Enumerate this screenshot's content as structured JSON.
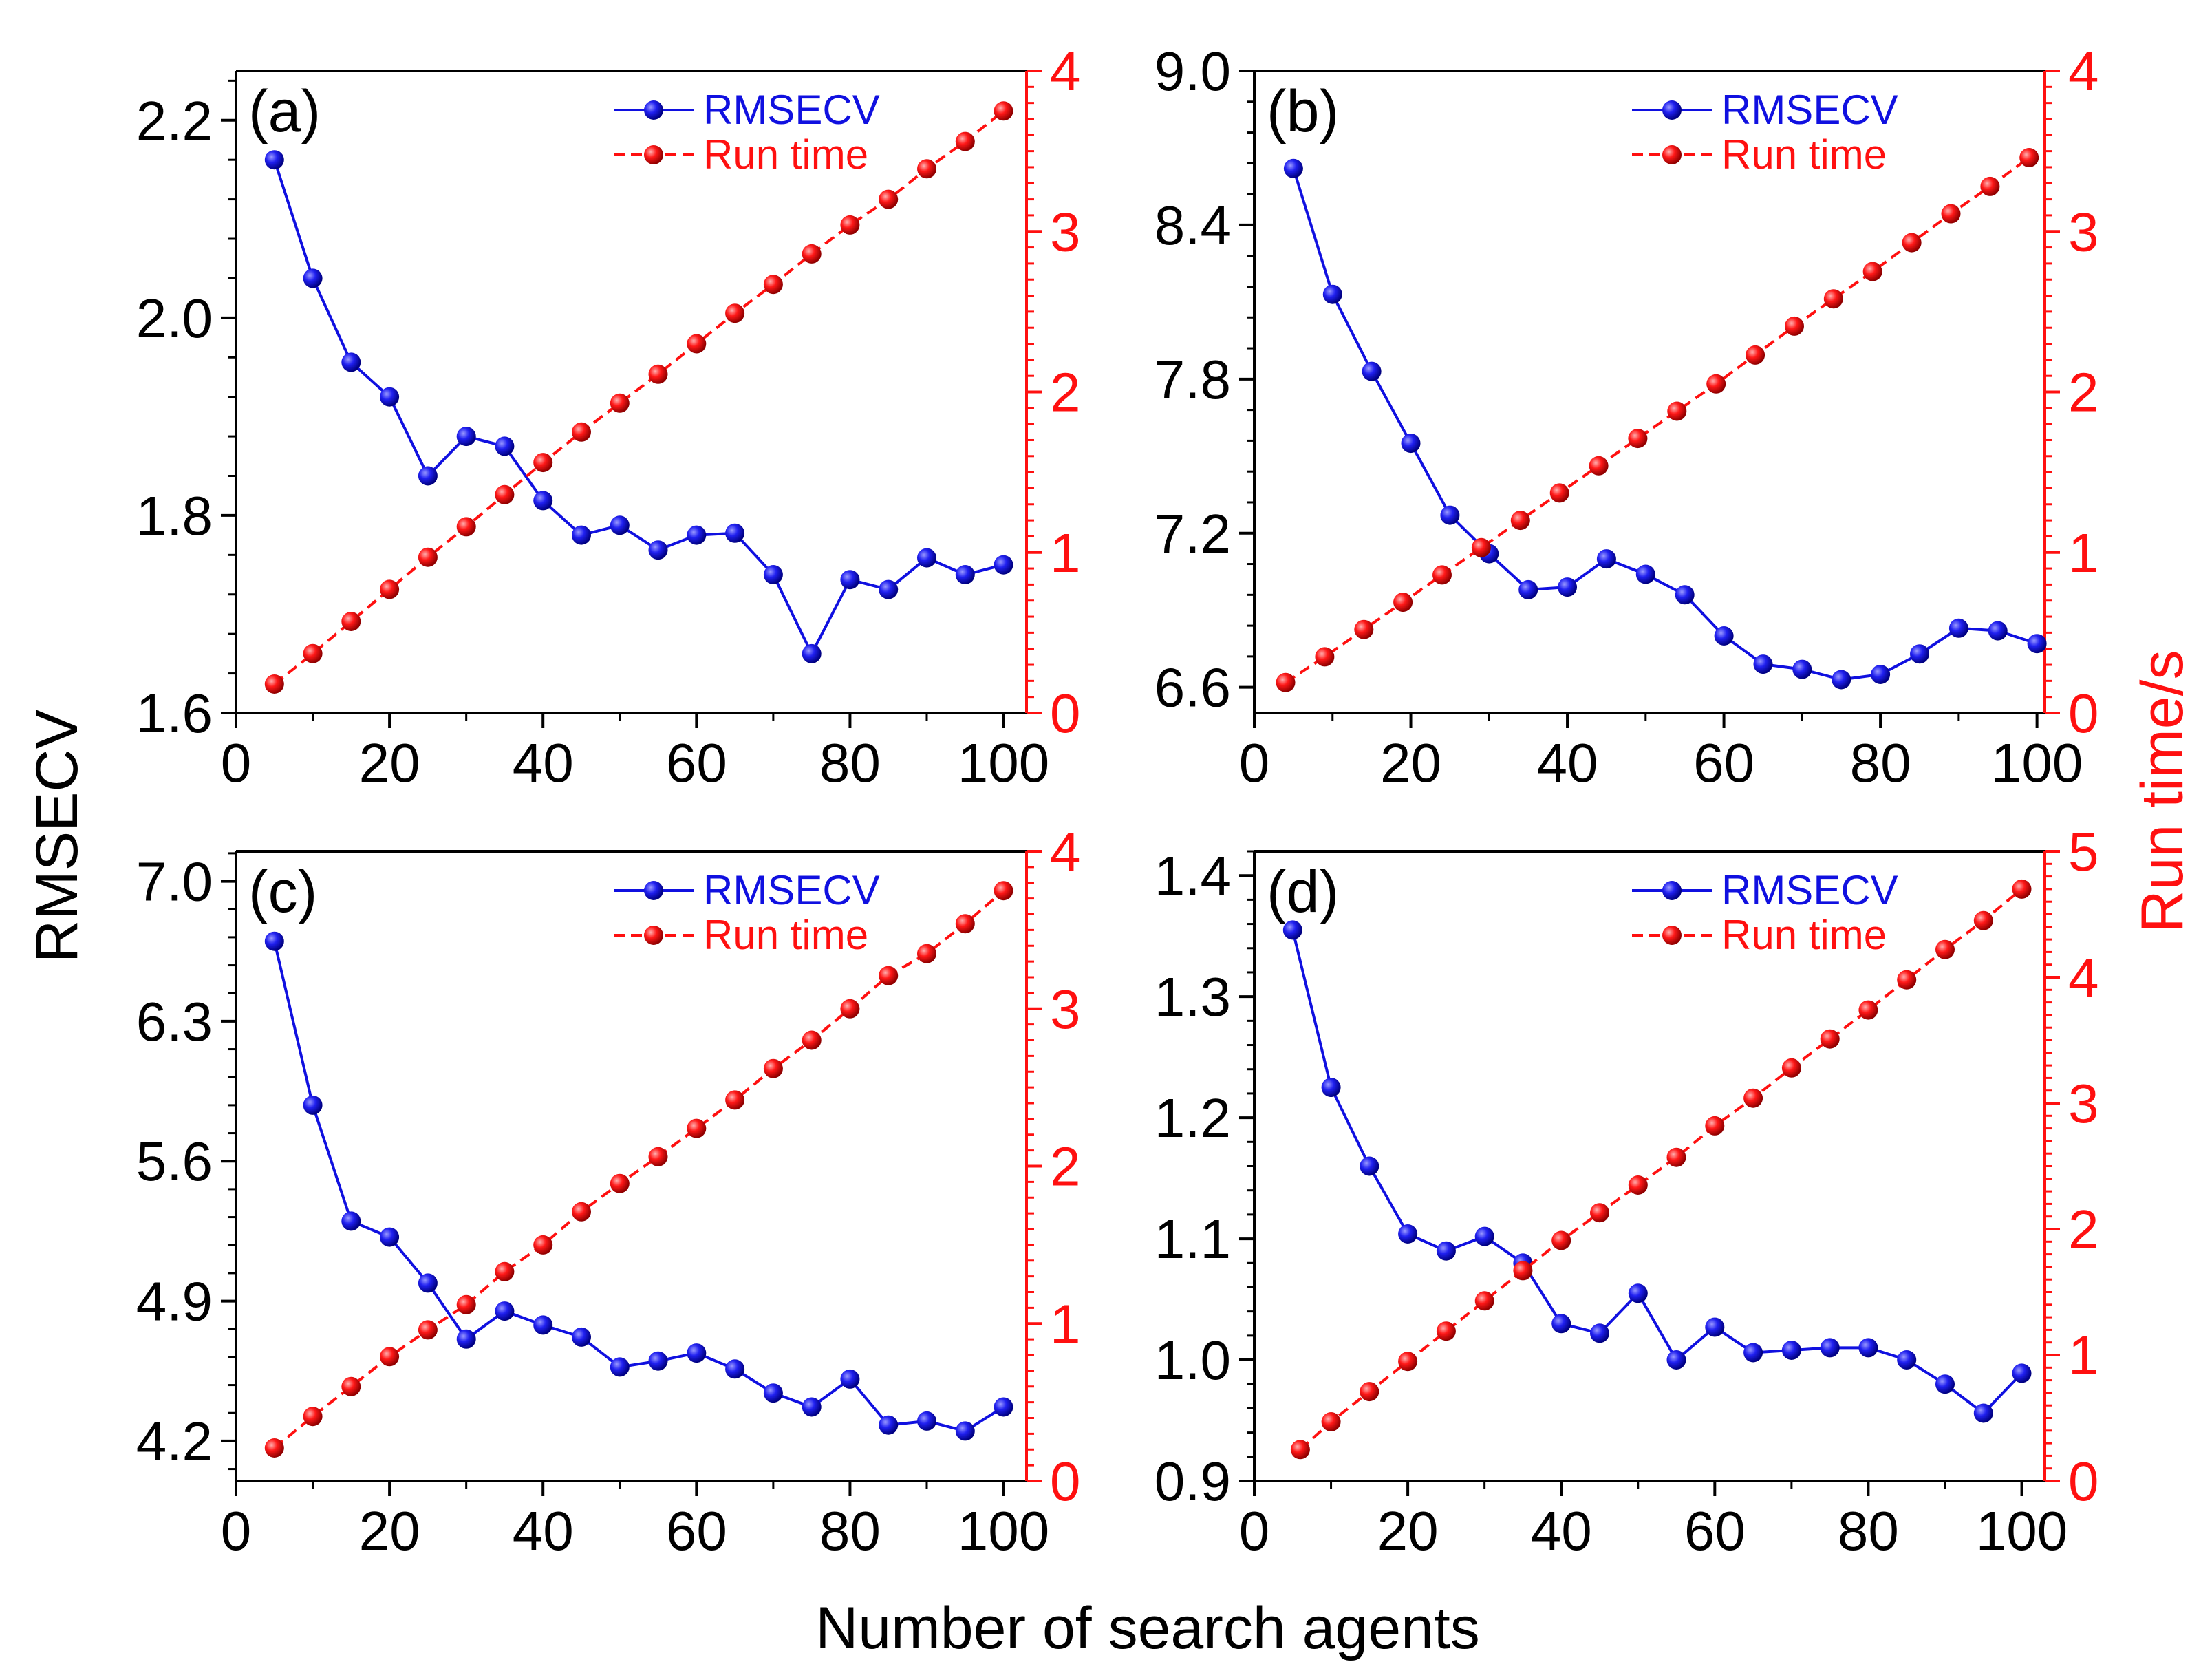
{
  "figure": {
    "shared_xlabel": "Number of search agents",
    "shared_ylabel_left": "RMSECV",
    "shared_ylabel_right": "Run time/s"
  },
  "colors": {
    "rmsecv": "#1010e0",
    "runtime": "#ff1010",
    "axis": "#000000"
  },
  "chart_data": [
    {
      "type": "line",
      "panel_label": "(a)",
      "x_ticks": [
        0,
        20,
        40,
        60,
        80,
        100
      ],
      "xlim": [
        0,
        103
      ],
      "y_left_ticks": [
        "1.6",
        "1.8",
        "2.0",
        "2.2"
      ],
      "ylim_left": [
        1.6,
        2.25
      ],
      "y_right_ticks": [
        "0",
        "1",
        "2",
        "3",
        "4"
      ],
      "ylim_right": [
        0,
        4
      ],
      "legend": [
        "RMSECV",
        "Run time"
      ],
      "legend_position": "top-right",
      "series": [
        {
          "name": "RMSECV",
          "axis": "left",
          "line": "solid",
          "x": [
            5,
            10,
            15,
            20,
            25,
            30,
            35,
            40,
            45,
            50,
            55,
            60,
            65,
            70,
            75,
            80,
            85,
            90,
            95,
            100
          ],
          "values": [
            2.16,
            2.04,
            1.955,
            1.92,
            1.84,
            1.88,
            1.87,
            1.815,
            1.78,
            1.79,
            1.765,
            1.78,
            1.782,
            1.74,
            1.66,
            1.735,
            1.725,
            1.757,
            1.74,
            1.75
          ]
        },
        {
          "name": "Run time",
          "axis": "right",
          "line": "dashed",
          "x": [
            5,
            10,
            15,
            20,
            25,
            30,
            35,
            40,
            45,
            50,
            55,
            60,
            65,
            70,
            75,
            80,
            85,
            90,
            95,
            100
          ],
          "values": [
            0.18,
            0.37,
            0.57,
            0.77,
            0.97,
            1.16,
            1.36,
            1.56,
            1.75,
            1.93,
            2.11,
            2.3,
            2.49,
            2.67,
            2.86,
            3.04,
            3.2,
            3.39,
            3.56,
            3.75
          ]
        }
      ]
    },
    {
      "type": "line",
      "panel_label": "(b)",
      "x_ticks": [
        0,
        20,
        40,
        60,
        80,
        100
      ],
      "xlim": [
        0,
        101
      ],
      "y_left_ticks": [
        "6.6",
        "7.2",
        "7.8",
        "8.4",
        "9.0"
      ],
      "ylim_left": [
        6.5,
        9.0
      ],
      "y_right_ticks": [
        "0",
        "1",
        "2",
        "3",
        "4"
      ],
      "ylim_right": [
        0,
        4
      ],
      "legend": [
        "RMSECV",
        "Run time"
      ],
      "legend_position": "top-right",
      "series": [
        {
          "name": "RMSECV",
          "axis": "left",
          "line": "solid",
          "x": [
            5,
            10,
            15,
            20,
            25,
            30,
            35,
            40,
            45,
            50,
            55,
            60,
            65,
            70,
            75,
            80,
            85,
            90,
            95,
            100
          ],
          "values": [
            8.62,
            8.13,
            7.83,
            7.55,
            7.27,
            7.12,
            6.98,
            6.99,
            7.1,
            7.04,
            6.96,
            6.8,
            6.69,
            6.67,
            6.63,
            6.65,
            6.73,
            6.83,
            6.82,
            6.77
          ]
        },
        {
          "name": "Run time",
          "axis": "right",
          "line": "dashed",
          "x": [
            4,
            9,
            14,
            19,
            24,
            29,
            34,
            39,
            44,
            49,
            54,
            59,
            64,
            69,
            74,
            79,
            84,
            89,
            94,
            99
          ],
          "values": [
            0.19,
            0.35,
            0.52,
            0.69,
            0.86,
            1.03,
            1.2,
            1.37,
            1.54,
            1.71,
            1.88,
            2.05,
            2.23,
            2.41,
            2.58,
            2.75,
            2.93,
            3.11,
            3.28,
            3.46
          ]
        }
      ]
    },
    {
      "type": "line",
      "panel_label": "(c)",
      "x_ticks": [
        0,
        20,
        40,
        60,
        80,
        100
      ],
      "xlim": [
        0,
        103
      ],
      "y_left_ticks": [
        "4.2",
        "4.9",
        "5.6",
        "6.3",
        "7.0"
      ],
      "ylim_left": [
        4.0,
        7.15
      ],
      "y_right_ticks": [
        "0",
        "1",
        "2",
        "3",
        "4"
      ],
      "ylim_right": [
        0,
        4
      ],
      "legend": [
        "RMSECV",
        "Run time"
      ],
      "legend_position": "top-right",
      "series": [
        {
          "name": "RMSECV",
          "axis": "left",
          "line": "solid",
          "x": [
            5,
            10,
            15,
            20,
            25,
            30,
            35,
            40,
            45,
            50,
            55,
            60,
            65,
            70,
            75,
            80,
            85,
            90,
            95,
            100
          ],
          "values": [
            6.7,
            5.88,
            5.3,
            5.22,
            4.99,
            4.71,
            4.85,
            4.78,
            4.72,
            4.57,
            4.6,
            4.64,
            4.56,
            4.44,
            4.37,
            4.51,
            4.28,
            4.3,
            4.25,
            4.37
          ]
        },
        {
          "name": "Run time",
          "axis": "right",
          "line": "dashed",
          "x": [
            5,
            10,
            15,
            20,
            25,
            30,
            35,
            40,
            45,
            50,
            55,
            60,
            65,
            70,
            75,
            80,
            85,
            90,
            95,
            100
          ],
          "values": [
            0.21,
            0.41,
            0.6,
            0.79,
            0.96,
            1.12,
            1.33,
            1.5,
            1.71,
            1.89,
            2.06,
            2.24,
            2.42,
            2.62,
            2.8,
            3.0,
            3.21,
            3.35,
            3.54,
            3.75
          ]
        }
      ]
    },
    {
      "type": "line",
      "panel_label": "(d)",
      "x_ticks": [
        0,
        20,
        40,
        60,
        80,
        100
      ],
      "xlim": [
        0,
        103
      ],
      "y_left_ticks": [
        "0.9",
        "1.0",
        "1.1",
        "1.2",
        "1.3",
        "1.4"
      ],
      "ylim_left": [
        0.9,
        1.42
      ],
      "y_right_ticks": [
        "0",
        "1",
        "2",
        "3",
        "4",
        "5"
      ],
      "ylim_right": [
        0,
        5
      ],
      "legend": [
        "RMSECV",
        "Run time"
      ],
      "legend_position": "top-right",
      "series": [
        {
          "name": "RMSECV",
          "axis": "left",
          "line": "solid",
          "x": [
            5,
            10,
            15,
            20,
            25,
            30,
            35,
            40,
            45,
            50,
            55,
            60,
            65,
            70,
            75,
            80,
            85,
            90,
            95,
            100
          ],
          "values": [
            1.355,
            1.225,
            1.16,
            1.104,
            1.09,
            1.102,
            1.08,
            1.03,
            1.022,
            1.055,
            1.0,
            1.027,
            1.006,
            1.008,
            1.01,
            1.01,
            1.0,
            0.98,
            0.956,
            0.989
          ]
        },
        {
          "name": "Run time",
          "axis": "right",
          "line": "dashed",
          "x": [
            6,
            10,
            15,
            20,
            25,
            30,
            35,
            40,
            45,
            50,
            55,
            60,
            65,
            70,
            75,
            80,
            85,
            90,
            95,
            100
          ],
          "values": [
            0.25,
            0.47,
            0.71,
            0.95,
            1.19,
            1.43,
            1.67,
            1.91,
            2.13,
            2.35,
            2.57,
            2.82,
            3.04,
            3.28,
            3.51,
            3.74,
            3.98,
            4.22,
            4.45,
            4.7
          ]
        }
      ]
    }
  ]
}
